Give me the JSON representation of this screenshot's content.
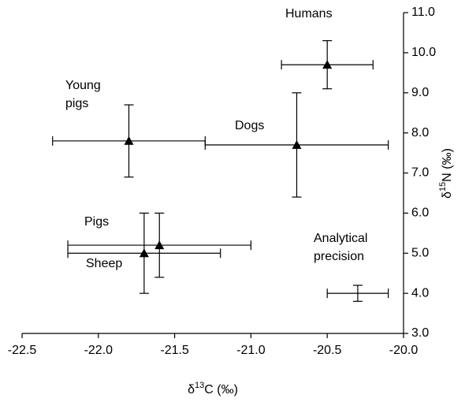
{
  "chart_data": {
    "type": "scatter",
    "x_label": [
      "δ",
      "13",
      "C (‰)"
    ],
    "y_label": [
      "δ",
      "15",
      "N (‰)"
    ],
    "xlim": [
      -22.5,
      -20.0
    ],
    "xticks": [
      -22.5,
      {
        "value": -22,
        "label": "-22.0"
      },
      -21.5,
      {
        "value": -21,
        "label": "-21.0"
      },
      -20.5,
      {
        "value": -20,
        "label": "-20.0"
      }
    ],
    "ylim": [
      3.0,
      11.0
    ],
    "yticks": [
      {
        "value": 3,
        "label": "3.0"
      },
      {
        "value": 4,
        "label": "4.0"
      },
      {
        "value": 5,
        "label": "5.0"
      },
      {
        "value": 6,
        "label": "6.0"
      },
      {
        "value": 7,
        "label": "7.0"
      },
      {
        "value": 8,
        "label": "8.0"
      },
      {
        "value": 9,
        "label": "9.0"
      },
      {
        "value": 10,
        "label": "10.0"
      },
      {
        "value": 11,
        "label": "11.0"
      }
    ],
    "series": [
      {
        "name": "Humans",
        "color": "#000000",
        "marker": "triangle",
        "x": [
          -20.5
        ],
        "values": [
          9.7
        ],
        "xerr": [
          0.3
        ],
        "yerr": [
          0.6
        ]
      },
      {
        "name": "Young pigs",
        "color": "#000000",
        "marker": "triangle",
        "x": [
          -21.8
        ],
        "values": [
          7.8
        ],
        "xerr": [
          0.5
        ],
        "yerr": [
          0.9
        ]
      },
      {
        "name": "Dogs",
        "color": "#000000",
        "marker": "triangle",
        "x": [
          -20.7
        ],
        "values": [
          7.7
        ],
        "xerr": [
          0.6
        ],
        "yerr": [
          1.3
        ]
      },
      {
        "name": "Pigs",
        "color": "#000000",
        "marker": "triangle",
        "x": [
          -21.6
        ],
        "values": [
          5.2
        ],
        "xerr": [
          0.6
        ],
        "yerr": [
          0.8
        ]
      },
      {
        "name": "Sheep",
        "color": "#000000",
        "marker": "triangle",
        "x": [
          -21.7
        ],
        "values": [
          5.0
        ],
        "xerr": [
          0.5
        ],
        "yerr": [
          1.0
        ]
      },
      {
        "name": "Analytical precision",
        "color": "#000000",
        "marker": "none",
        "x": [
          -20.3
        ],
        "values": [
          4.0
        ],
        "xerr": [
          0.2
        ],
        "yerr": [
          0.2
        ]
      }
    ]
  }
}
